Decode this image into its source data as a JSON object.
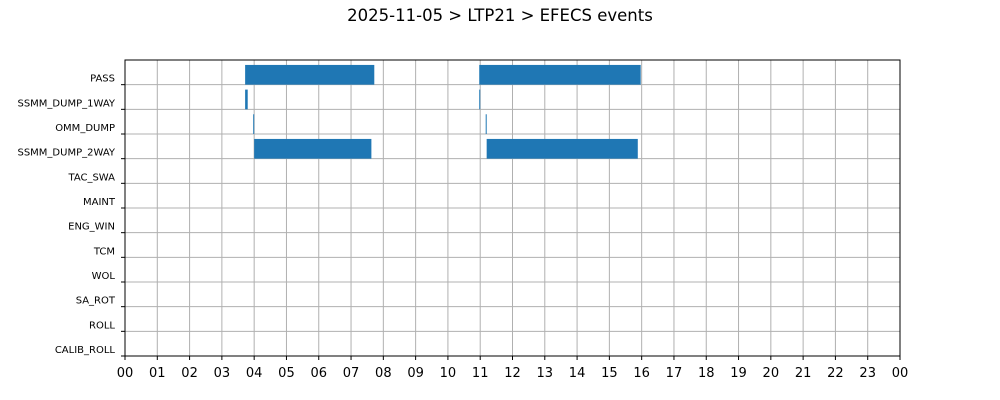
{
  "title": "2025-11-05 > LTP21 > EFECS events",
  "colors": {
    "bar": "#1f77b4",
    "grid": "#b0b0b0",
    "axis": "#000000"
  },
  "chart_data": {
    "type": "bar",
    "orientation": "horizontal-timeline",
    "title": "2025-11-05 > LTP21 > EFECS events",
    "xlabel": "",
    "ylabel": "",
    "xlim": [
      0,
      24
    ],
    "grid": true,
    "x_tick_labels": [
      "00",
      "01",
      "02",
      "03",
      "04",
      "05",
      "06",
      "07",
      "08",
      "09",
      "10",
      "11",
      "12",
      "13",
      "14",
      "15",
      "16",
      "17",
      "18",
      "19",
      "20",
      "21",
      "22",
      "23",
      "00"
    ],
    "categories": [
      "PASS",
      "SSMM_DUMP_1WAY",
      "OMM_DUMP",
      "SSMM_DUMP_2WAY",
      "TAC_SWA",
      "MAINT",
      "ENG_WIN",
      "TCM",
      "WOL",
      "SA_ROT",
      "ROLL",
      "CALIB_ROLL"
    ],
    "series": [
      {
        "category": "PASS",
        "intervals": [
          [
            3.72,
            7.72
          ],
          [
            10.97,
            15.97
          ]
        ]
      },
      {
        "category": "SSMM_DUMP_1WAY",
        "intervals": [
          [
            3.72,
            3.8
          ],
          [
            10.97,
            11.0
          ]
        ]
      },
      {
        "category": "OMM_DUMP",
        "intervals": [
          [
            3.97,
            4.0
          ],
          [
            11.17,
            11.2
          ]
        ]
      },
      {
        "category": "SSMM_DUMP_2WAY",
        "intervals": [
          [
            4.0,
            7.63
          ],
          [
            11.2,
            15.88
          ]
        ]
      },
      {
        "category": "TAC_SWA",
        "intervals": []
      },
      {
        "category": "MAINT",
        "intervals": []
      },
      {
        "category": "ENG_WIN",
        "intervals": []
      },
      {
        "category": "TCM",
        "intervals": []
      },
      {
        "category": "WOL",
        "intervals": []
      },
      {
        "category": "SA_ROT",
        "intervals": []
      },
      {
        "category": "ROLL",
        "intervals": []
      },
      {
        "category": "CALIB_ROLL",
        "intervals": []
      }
    ]
  }
}
